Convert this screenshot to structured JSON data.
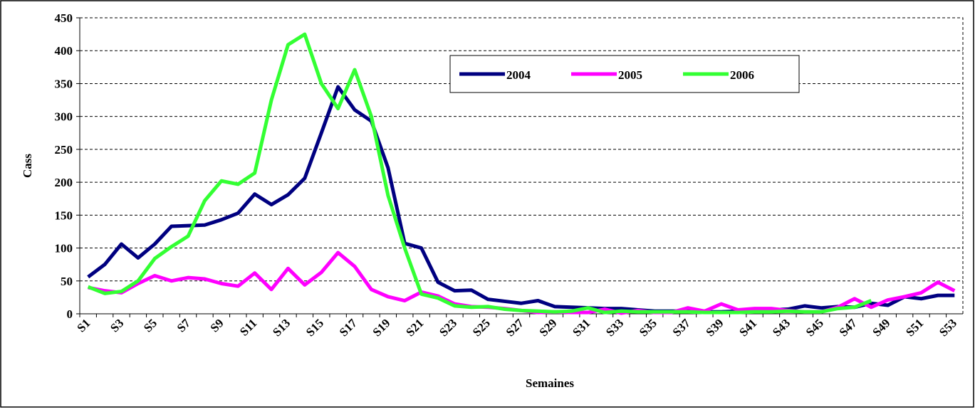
{
  "chart_data": {
    "type": "line",
    "x_label": "Semaines",
    "y_label": "Cass",
    "categories": [
      "S1",
      null,
      "S3",
      null,
      "S5",
      null,
      "S7",
      null,
      "S9",
      null,
      "S11",
      null,
      "S13",
      null,
      "S15",
      null,
      "S17",
      null,
      "S19",
      null,
      "S21",
      null,
      "S23",
      null,
      "S25",
      null,
      "S27",
      null,
      "S29",
      null,
      "S31",
      null,
      "S33",
      null,
      "S35",
      null,
      "S37",
      null,
      "S39",
      null,
      "S41",
      null,
      "S43",
      null,
      "S45",
      null,
      "S47",
      null,
      "S49",
      null,
      "S51",
      null,
      "S53"
    ],
    "series": [
      {
        "name": "2004",
        "color": "#000080",
        "values": [
          56,
          75,
          106,
          85,
          106,
          133,
          134,
          135,
          143,
          153,
          182,
          166,
          181,
          206,
          275,
          345,
          310,
          293,
          222,
          107,
          100,
          48,
          35,
          36,
          22,
          19,
          16,
          20,
          11,
          10,
          9,
          8,
          8,
          6,
          4,
          4,
          4,
          3,
          3,
          4,
          4,
          6,
          7,
          12,
          9,
          11,
          10,
          16,
          13,
          26,
          23,
          28,
          28
        ]
      },
      {
        "name": "2005",
        "color": "#ff00ff",
        "values": [
          40,
          35,
          32,
          46,
          58,
          50,
          55,
          53,
          46,
          42,
          62,
          37,
          69,
          44,
          63,
          93,
          72,
          37,
          26,
          20,
          33,
          27,
          15,
          11,
          10,
          8,
          5,
          2,
          3,
          2,
          2,
          7,
          1,
          5,
          2,
          2,
          9,
          4,
          15,
          6,
          8,
          8,
          5,
          3,
          3,
          10,
          23,
          10,
          21,
          26,
          32,
          48,
          35
        ]
      },
      {
        "name": "2006",
        "color": "#33ff33",
        "values": [
          41,
          31,
          34,
          50,
          84,
          102,
          118,
          172,
          202,
          197,
          214,
          325,
          409,
          425,
          350,
          312,
          371,
          300,
          180,
          100,
          30,
          24,
          12,
          10,
          11,
          7,
          5,
          4,
          3,
          4,
          9,
          2,
          4,
          3,
          3,
          3,
          3,
          2,
          2,
          2,
          3,
          3,
          4,
          3,
          3,
          8,
          10,
          20,
          null,
          null,
          null,
          null,
          null
        ]
      }
    ],
    "ylim": [
      0,
      450
    ],
    "yticks": [
      0,
      50,
      100,
      150,
      200,
      250,
      300,
      350,
      400,
      450
    ],
    "grid": true
  }
}
